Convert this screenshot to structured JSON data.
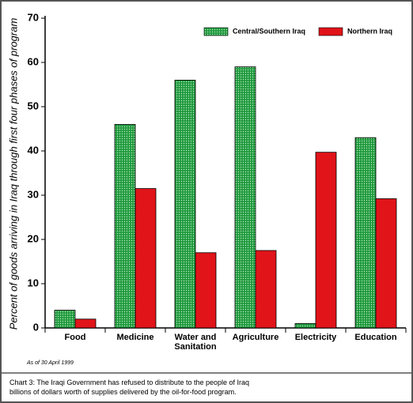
{
  "chart_data": {
    "type": "bar",
    "y_label": "Percent of goods arriving in Iraq through first four phases of program",
    "categories": [
      "Food",
      "Medicine",
      "Water and Sanitation",
      "Agriculture",
      "Electricity",
      "Education"
    ],
    "series": [
      {
        "name": "Central/Southern Iraq",
        "color": "#1e9a3c",
        "values": [
          4,
          46,
          56,
          59,
          1,
          43
        ]
      },
      {
        "name": "Northern Iraq",
        "color": "#e01419",
        "values": [
          2,
          31.5,
          17,
          17.5,
          39.7,
          29.2
        ]
      }
    ],
    "ylim": [
      0,
      70
    ],
    "yticks": [
      0,
      10,
      20,
      30,
      40,
      50,
      60,
      70
    ],
    "legend": "top-right",
    "note": "As of 30 April 1999",
    "caption": "Chart 3: The Iraqi Government has refused to distribute to the people of Iraq billions of dollars worth of supplies delivered by the oil-for-food program."
  }
}
